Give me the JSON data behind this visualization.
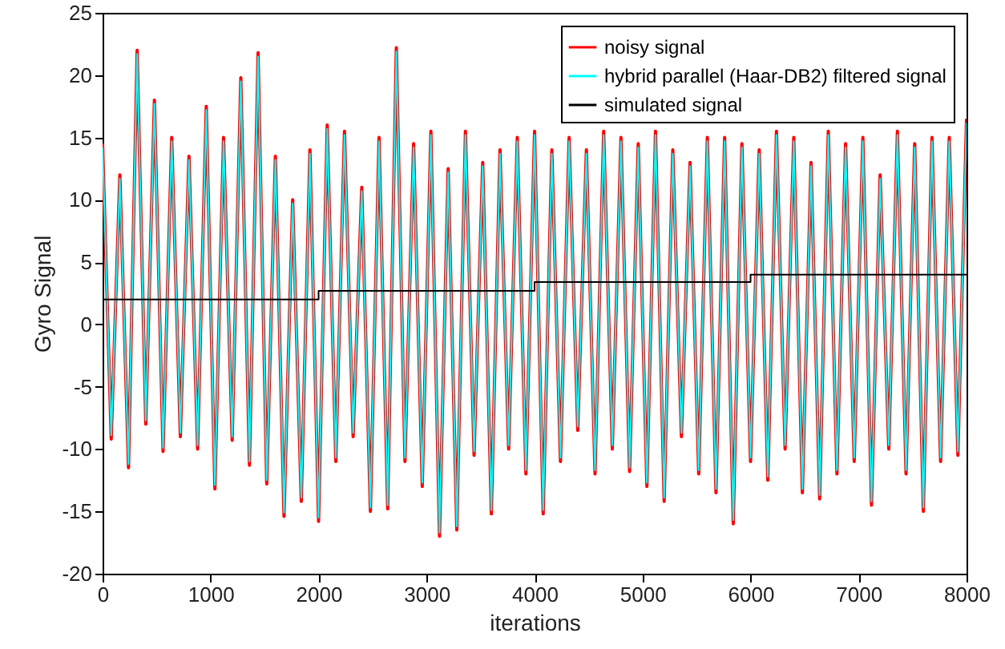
{
  "chart_data": {
    "type": "line",
    "xlabel": "iterations",
    "ylabel": "Gyro Signal",
    "xlim": [
      0,
      8000
    ],
    "xticks": [
      0,
      1000,
      2000,
      3000,
      4000,
      5000,
      6000,
      7000,
      8000
    ],
    "ylim": [
      -20,
      25
    ],
    "yticks": [
      -20,
      -15,
      -10,
      -5,
      0,
      5,
      10,
      15,
      20,
      25
    ],
    "legend": "top right",
    "grid": false,
    "x": [
      0,
      80,
      160,
      240,
      320,
      400,
      480,
      560,
      640,
      720,
      800,
      880,
      960,
      1040,
      1120,
      1200,
      1280,
      1360,
      1440,
      1520,
      1600,
      1680,
      1760,
      1840,
      1920,
      2000,
      2080,
      2160,
      2240,
      2320,
      2400,
      2480,
      2560,
      2640,
      2720,
      2800,
      2880,
      2960,
      3040,
      3120,
      3200,
      3280,
      3360,
      3440,
      3520,
      3600,
      3680,
      3760,
      3840,
      3920,
      4000,
      4080,
      4160,
      4240,
      4320,
      4400,
      4480,
      4560,
      4640,
      4720,
      4800,
      4880,
      4960,
      5040,
      5120,
      5200,
      5280,
      5360,
      5440,
      5520,
      5600,
      5680,
      5760,
      5840,
      5920,
      6000,
      6080,
      6160,
      6240,
      6320,
      6400,
      6480,
      6560,
      6640,
      6720,
      6800,
      6880,
      6960,
      7040,
      7120,
      7200,
      7280,
      7360,
      7440,
      7520,
      7600,
      7680,
      7760,
      7840,
      7920,
      8000
    ],
    "series": [
      {
        "name": "noisy signal",
        "color": "#ff0000",
        "values": [
          14.5,
          -9.2,
          12,
          -11.5,
          22,
          -8,
          18,
          -10.2,
          15,
          -9,
          13.5,
          -10,
          17.5,
          -13.2,
          15,
          -9.3,
          19.8,
          -11.3,
          21.8,
          -12.8,
          13.5,
          -15.4,
          10,
          -14.2,
          14,
          -15.8,
          16,
          -11,
          15.5,
          -9,
          11,
          -15,
          15,
          -14.8,
          22.2,
          -11,
          14.5,
          -13,
          15.5,
          -17,
          12.5,
          -16.5,
          15.5,
          -10.5,
          13,
          -15.2,
          14,
          -10,
          15,
          -12,
          15.5,
          -15.2,
          14,
          -11,
          15,
          -8.5,
          14,
          -12,
          15.5,
          -10,
          15,
          -11.8,
          14.5,
          -13,
          15.5,
          -14.2,
          14,
          -9,
          13,
          -12,
          15,
          -13.5,
          15,
          -16,
          14.5,
          -11,
          14,
          -12.5,
          15.5,
          -10,
          15,
          -13.5,
          13,
          -14,
          15.5,
          -12,
          14.5,
          -11,
          15,
          -14.5,
          12,
          -10,
          15.5,
          -12,
          14.5,
          -15,
          15,
          -11,
          15,
          -10.5,
          16.5
        ]
      },
      {
        "name": "hybrid parallel (Haar-DB2) filtered signal",
        "color": "#00ffff",
        "values": [
          14.2,
          -8.9,
          11.7,
          -11.2,
          21.7,
          -7.7,
          17.7,
          -9.9,
          14.7,
          -8.7,
          13.2,
          -9.7,
          17.2,
          -12.9,
          14.7,
          -9,
          19.5,
          -11,
          21.5,
          -12.5,
          13.2,
          -15.1,
          9.7,
          -13.9,
          13.7,
          -15.5,
          15.7,
          -10.7,
          15.2,
          -8.7,
          10.7,
          -14.7,
          14.7,
          -14.5,
          21.9,
          -10.7,
          14.2,
          -12.7,
          15.2,
          -16.7,
          12.2,
          -16.2,
          15.2,
          -10.2,
          12.7,
          -14.9,
          13.7,
          -9.7,
          14.7,
          -11.7,
          15.2,
          -14.9,
          13.7,
          -10.7,
          14.7,
          -8.2,
          13.7,
          -11.7,
          15.2,
          -9.7,
          14.7,
          -11.5,
          14.2,
          -12.7,
          15.2,
          -13.9,
          13.7,
          -8.7,
          12.7,
          -11.7,
          14.7,
          -13.2,
          14.7,
          -15.7,
          14.2,
          -10.7,
          13.7,
          -12.2,
          15.2,
          -9.7,
          14.7,
          -13.2,
          12.7,
          -13.7,
          15.2,
          -11.7,
          14.2,
          -10.7,
          14.7,
          -14.2,
          11.7,
          -9.7,
          15.2,
          -11.7,
          14.2,
          -14.7,
          14.7,
          -10.7,
          14.7,
          -10.2,
          16.2
        ]
      },
      {
        "name": "simulated signal",
        "type": "step",
        "color": "#000000",
        "x": [
          0,
          2000,
          4000,
          6000,
          8000
        ],
        "values": [
          2,
          2.7,
          3.4,
          4,
          4
        ]
      }
    ]
  }
}
